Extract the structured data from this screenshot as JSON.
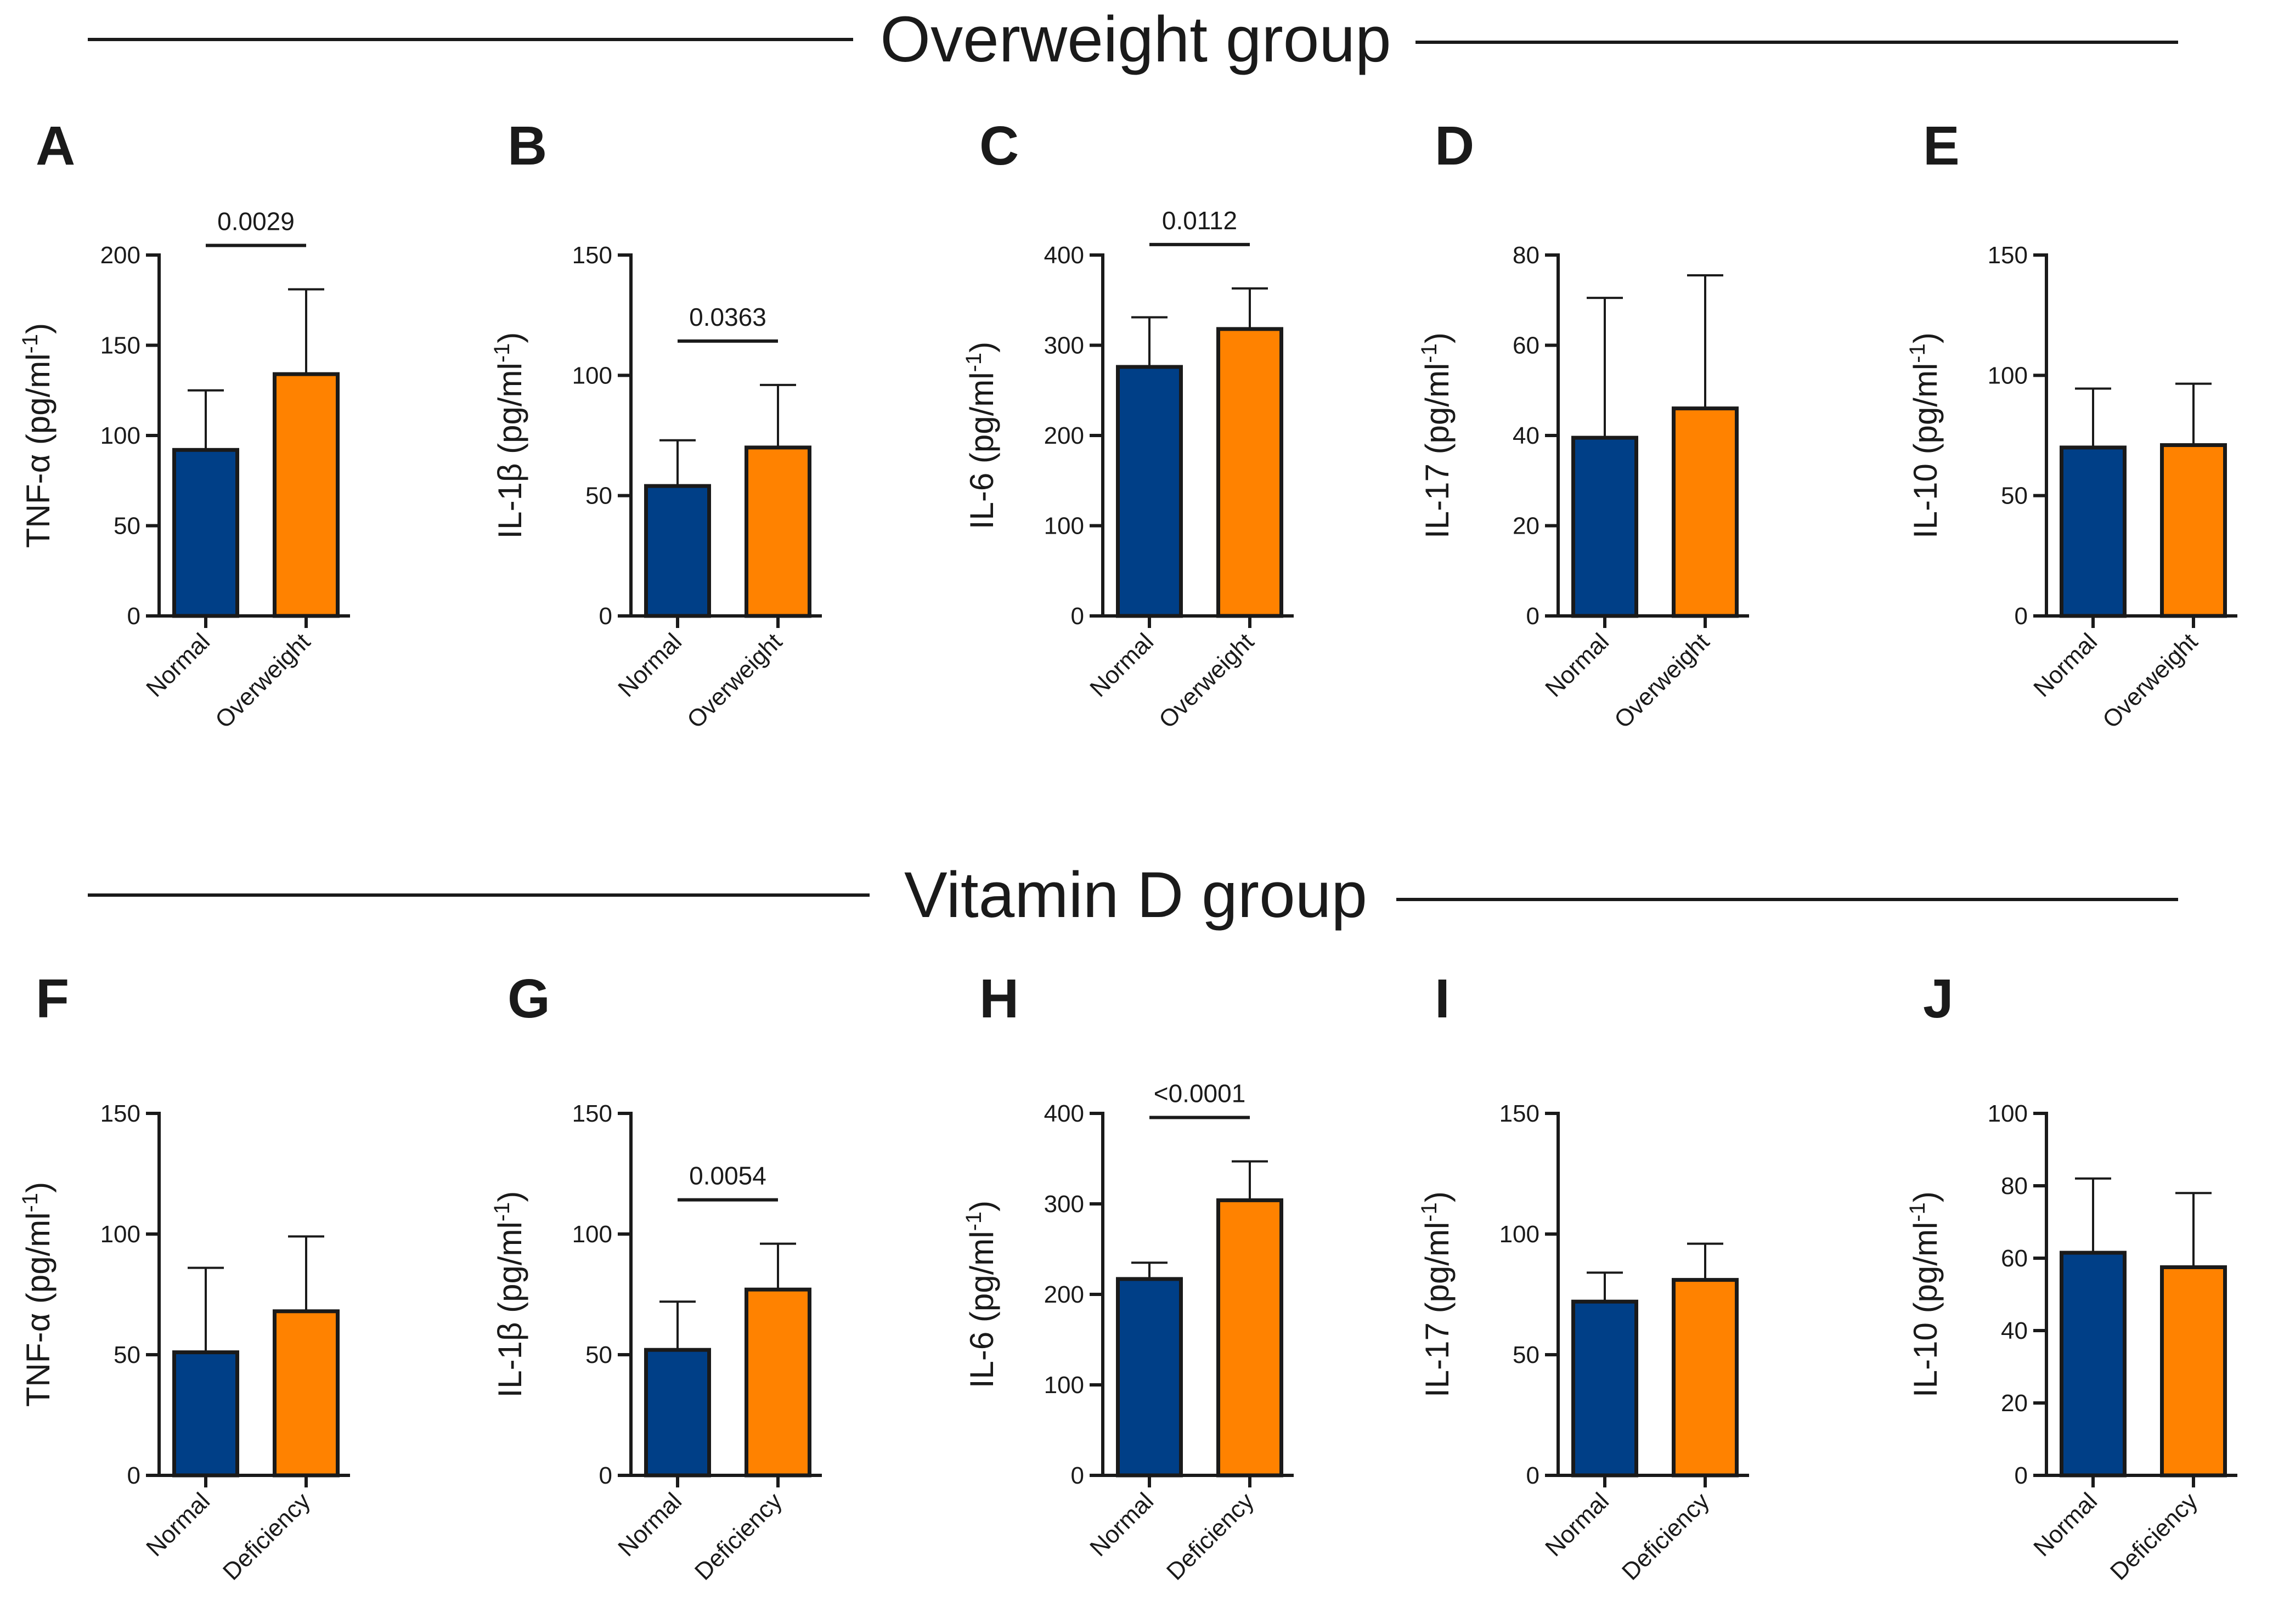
{
  "colors": {
    "normal": "#003f87",
    "group": "#ff8200",
    "edge": "#1a1a1a"
  },
  "sections": [
    {
      "title": "Overweight group"
    },
    {
      "title": "Vitamin D group"
    }
  ],
  "chart_data": [
    {
      "panel": "A",
      "type": "bar",
      "ylabel": "TNF-α (pg/ml",
      "ylabel_sup": "-1",
      "ylabel_close": ")",
      "categories": [
        "Normal",
        "Overweight"
      ],
      "values": [
        92,
        134
      ],
      "errors": [
        33,
        47
      ],
      "ylim": [
        0,
        200
      ],
      "yticks": [
        0,
        50,
        100,
        150,
        200
      ],
      "pvalue": "0.0029"
    },
    {
      "panel": "B",
      "type": "bar",
      "ylabel": "IL-1β (pg/ml",
      "ylabel_sup": "-1",
      "ylabel_close": ")",
      "categories": [
        "Normal",
        "Overweight"
      ],
      "values": [
        54,
        70
      ],
      "errors": [
        19,
        26
      ],
      "ylim": [
        0,
        150
      ],
      "yticks": [
        0,
        50,
        100,
        150
      ],
      "pvalue": "0.0363"
    },
    {
      "panel": "C",
      "type": "bar",
      "ylabel": "IL-6 (pg/ml",
      "ylabel_sup": "-1",
      "ylabel_close": ")",
      "categories": [
        "Normal",
        "Overweight"
      ],
      "values": [
        276,
        318
      ],
      "errors": [
        55,
        45
      ],
      "ylim": [
        0,
        400
      ],
      "yticks": [
        0,
        100,
        200,
        300,
        400
      ],
      "pvalue": "0.0112"
    },
    {
      "panel": "D",
      "type": "bar",
      "ylabel": "IL-17 (pg/ml",
      "ylabel_sup": "-1",
      "ylabel_close": ")",
      "categories": [
        "Normal",
        "Overweight"
      ],
      "values": [
        39.5,
        46
      ],
      "errors": [
        31,
        29.5
      ],
      "ylim": [
        0,
        80
      ],
      "yticks": [
        0,
        20,
        40,
        60,
        80
      ],
      "pvalue": ""
    },
    {
      "panel": "E",
      "type": "bar",
      "ylabel": "IL-10 (pg/ml",
      "ylabel_sup": "-1",
      "ylabel_close": ")",
      "categories": [
        "Normal",
        "Overweight"
      ],
      "values": [
        70,
        71
      ],
      "errors": [
        24.5,
        25.5
      ],
      "ylim": [
        0,
        150
      ],
      "yticks": [
        0,
        50,
        100,
        150
      ],
      "pvalue": ""
    },
    {
      "panel": "F",
      "type": "bar",
      "ylabel": "TNF-α (pg/ml",
      "ylabel_sup": "-1",
      "ylabel_close": ")",
      "categories": [
        "Normal",
        "Deficiency"
      ],
      "values": [
        51,
        68
      ],
      "errors": [
        35,
        31
      ],
      "ylim": [
        0,
        150
      ],
      "yticks": [
        0,
        50,
        100,
        150
      ],
      "pvalue": ""
    },
    {
      "panel": "G",
      "type": "bar",
      "ylabel": "IL-1β (pg/ml",
      "ylabel_sup": "-1",
      "ylabel_close": ")",
      "categories": [
        "Normal",
        "Deficiency"
      ],
      "values": [
        52,
        77
      ],
      "errors": [
        20,
        19
      ],
      "ylim": [
        0,
        150
      ],
      "yticks": [
        0,
        50,
        100,
        150
      ],
      "pvalue": "0.0054"
    },
    {
      "panel": "H",
      "type": "bar",
      "ylabel": "IL-6 (pg/ml",
      "ylabel_sup": "-1",
      "ylabel_close": ")",
      "categories": [
        "Normal",
        "Deficiency"
      ],
      "values": [
        217,
        304
      ],
      "errors": [
        18,
        43
      ],
      "ylim": [
        0,
        400
      ],
      "yticks": [
        0,
        100,
        200,
        300,
        400
      ],
      "pvalue": "<0.0001"
    },
    {
      "panel": "I",
      "type": "bar",
      "ylabel": "IL-17 (pg/ml",
      "ylabel_sup": "-1",
      "ylabel_close": ")",
      "categories": [
        "Normal",
        "Deficiency"
      ],
      "values": [
        72,
        81
      ],
      "errors": [
        12,
        15
      ],
      "ylim": [
        0,
        150
      ],
      "yticks": [
        0,
        50,
        100,
        150
      ],
      "pvalue": ""
    },
    {
      "panel": "J",
      "type": "bar",
      "ylabel": "IL-10 (pg/ml",
      "ylabel_sup": "-1",
      "ylabel_close": ")",
      "categories": [
        "Normal",
        "Deficiency"
      ],
      "values": [
        61.5,
        57.5
      ],
      "errors": [
        20.5,
        20.5
      ],
      "ylim": [
        0,
        100
      ],
      "yticks": [
        0,
        20,
        40,
        60,
        80,
        100
      ],
      "pvalue": ""
    }
  ]
}
